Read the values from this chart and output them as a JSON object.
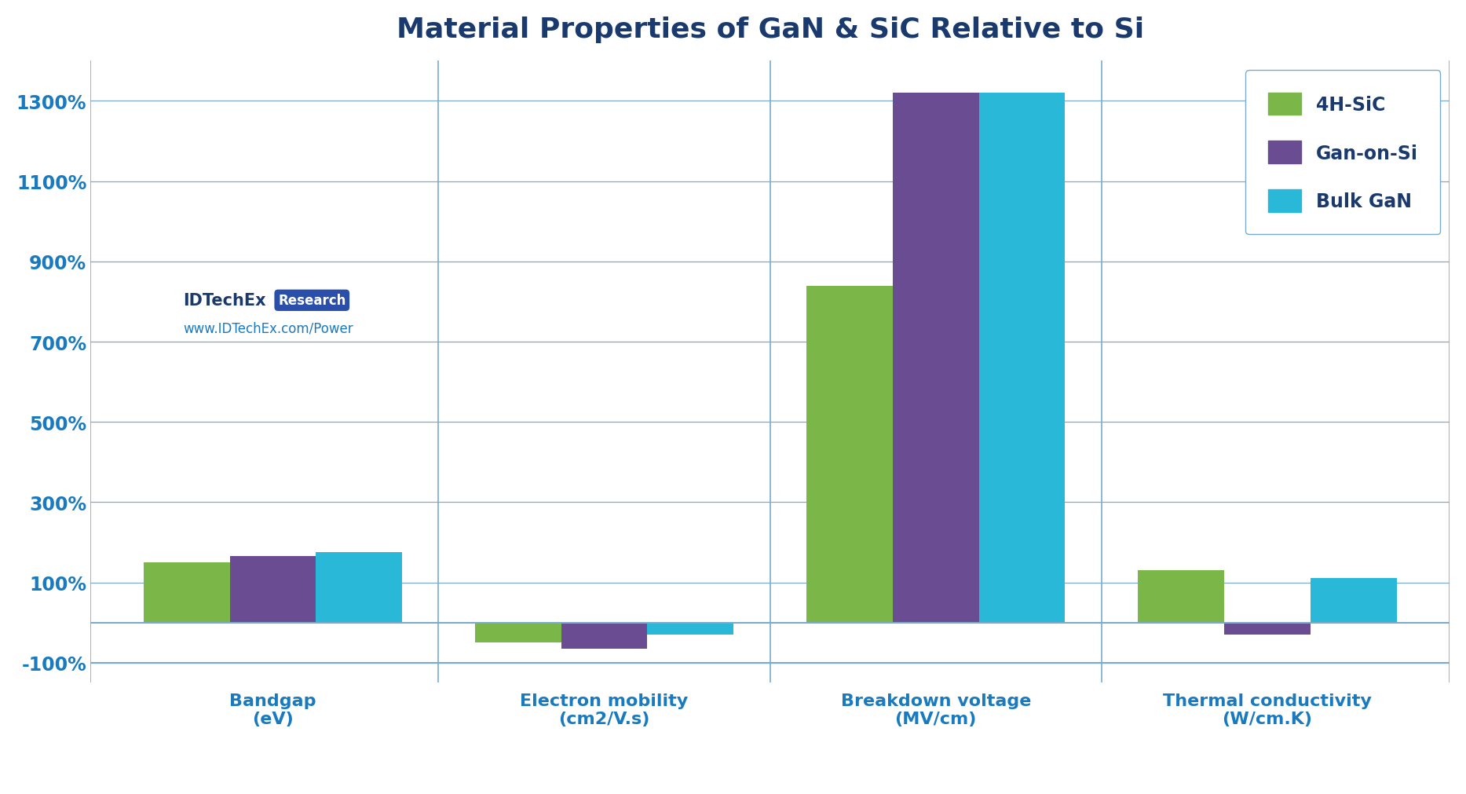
{
  "title": "Material Properties of GaN & SiC Relative to Si",
  "categories": [
    "Bandgap\n(eV)",
    "Electron mobility\n(cm2/V.s)",
    "Breakdown voltage\n(MV/cm)",
    "Thermal conductivity\n(W/cm.K)"
  ],
  "series": {
    "4H-SiC": [
      150,
      -50,
      840,
      130
    ],
    "Gan-on-Si": [
      165,
      -65,
      1320,
      -30
    ],
    "Bulk GaN": [
      175,
      -30,
      1320,
      110
    ]
  },
  "colors": {
    "4H-SiC": "#7ab648",
    "Gan-on-Si": "#6a4c93",
    "Bulk GaN": "#29b8d8"
  },
  "ylim": [
    -150,
    1400
  ],
  "yticks": [
    -100,
    100,
    300,
    500,
    700,
    900,
    1100,
    1300
  ],
  "ytick_labels": [
    "-100%",
    "100%",
    "300%",
    "500%",
    "700%",
    "900%",
    "1100%",
    "1300%"
  ],
  "background_color": "#ffffff",
  "grid_color": "#7aabcc",
  "title_color": "#1a3a6e",
  "axis_label_color": "#1a7abf",
  "watermark_text": "IDTechEx",
  "watermark_badge": "Research",
  "watermark_url": "www.IDTechEx.com/Power",
  "bar_width": 0.26,
  "legend_names": [
    "4H-SiC",
    "Gan-on-Si",
    "Bulk GaN"
  ]
}
